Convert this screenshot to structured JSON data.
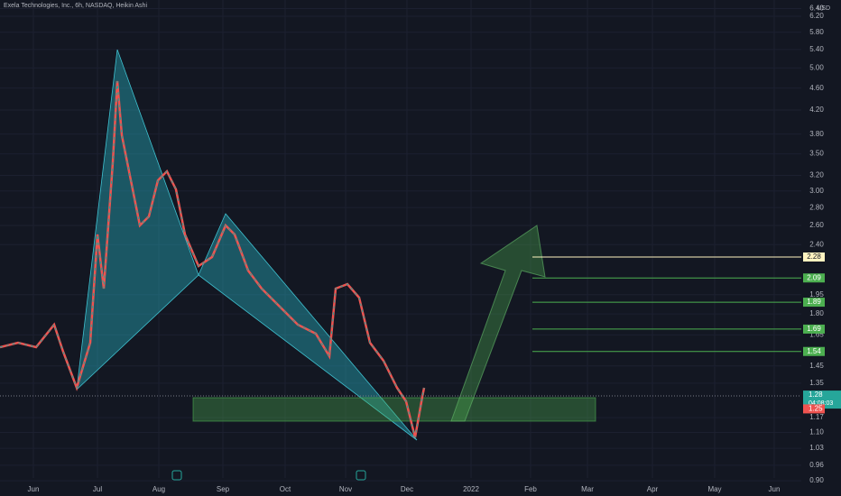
{
  "header": {
    "title": "Exela Technologies, Inc., 6h, NASDAQ, Heikin Ashi"
  },
  "price_axis": {
    "currency": "USD",
    "labels": [
      "6.40",
      "6.20",
      "5.80",
      "5.40",
      "5.00",
      "4.60",
      "4.20",
      "3.80",
      "3.50",
      "3.20",
      "3.00",
      "2.80",
      "2.60",
      "2.40",
      "1.95",
      "1.80",
      "1.65",
      "1.45",
      "1.35",
      "1.17",
      "1.10",
      "1.03",
      "0.96",
      "0.90"
    ]
  },
  "time_axis": {
    "labels": [
      "Jun",
      "Jul",
      "Aug",
      "Sep",
      "Oct",
      "Nov",
      "Dec",
      "2022",
      "Feb",
      "Mar",
      "Apr",
      "May",
      "Jun"
    ]
  },
  "levels": [
    {
      "label": "2.28",
      "color": "#fff3c0"
    },
    {
      "label": "2.09",
      "color": "#4caf50"
    },
    {
      "label": "1.89",
      "color": "#4caf50"
    },
    {
      "label": "1.69",
      "color": "#4caf50"
    },
    {
      "label": "1.54",
      "color": "#4caf50"
    }
  ],
  "last_price": {
    "price": "1.28",
    "countdown": "04:08:03"
  },
  "previous_close": "1.25"
}
